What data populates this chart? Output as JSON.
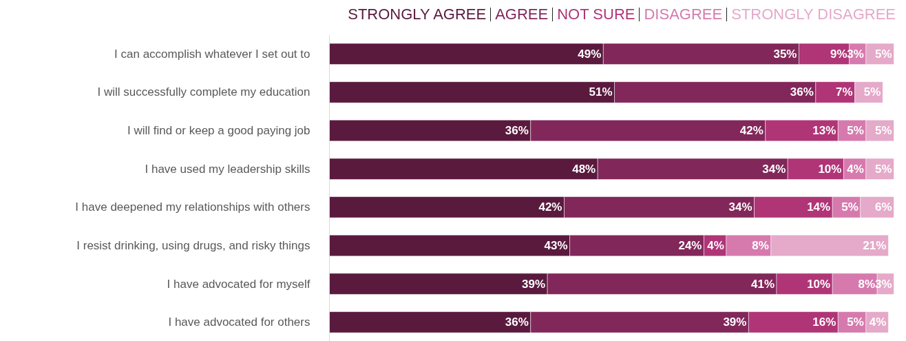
{
  "chart_data": {
    "type": "bar",
    "orientation": "horizontal",
    "stacked": true,
    "legend": "top",
    "grid": false,
    "categories": [
      "I can accomplish whatever I set out to",
      "I will successfully complete my education",
      "I will find or keep a good paying job",
      "I have used my leadership skills",
      "I have deepened my relationships with others",
      "I resist drinking, using drugs, and risky things",
      "I have advocated for myself",
      "I have advocated for others"
    ],
    "series": [
      {
        "name": "STRONGLY AGREE",
        "color": "#5a1a3e",
        "values": [
          49,
          51,
          36,
          48,
          42,
          43,
          39,
          36
        ],
        "value_labels": [
          "49%",
          "51%",
          "36%",
          "48%",
          "42%",
          "43%",
          "39%",
          "36%"
        ]
      },
      {
        "name": "AGREE",
        "color": "#82275a",
        "values": [
          35,
          36,
          42,
          34,
          34,
          24,
          41,
          39
        ],
        "value_labels": [
          "35%",
          "36%",
          "42%",
          "34%",
          "34%",
          "24%",
          "41%",
          "39%"
        ]
      },
      {
        "name": "NOT SURE",
        "color": "#b03577",
        "values": [
          9,
          7,
          13,
          10,
          14,
          4,
          10,
          16
        ],
        "value_labels": [
          "9%",
          "7%",
          "13%",
          "10%",
          "14%",
          "4%",
          "10%",
          "16%"
        ]
      },
      {
        "name": "DISAGREE",
        "color": "#d67aae",
        "values": [
          3,
          null,
          5,
          4,
          5,
          8,
          8,
          5
        ],
        "value_labels": [
          "3%",
          null,
          "5%",
          "4%",
          "5%",
          "8%",
          "8%",
          "5%"
        ]
      },
      {
        "name": "STRONGLY DISAGREE",
        "color": "#e5a9c9",
        "values": [
          5,
          5,
          5,
          5,
          6,
          21,
          3,
          4
        ],
        "value_labels": [
          "5%",
          "5%",
          "5%",
          "5%",
          "6%",
          "21%",
          "3%",
          "4%"
        ]
      }
    ]
  }
}
